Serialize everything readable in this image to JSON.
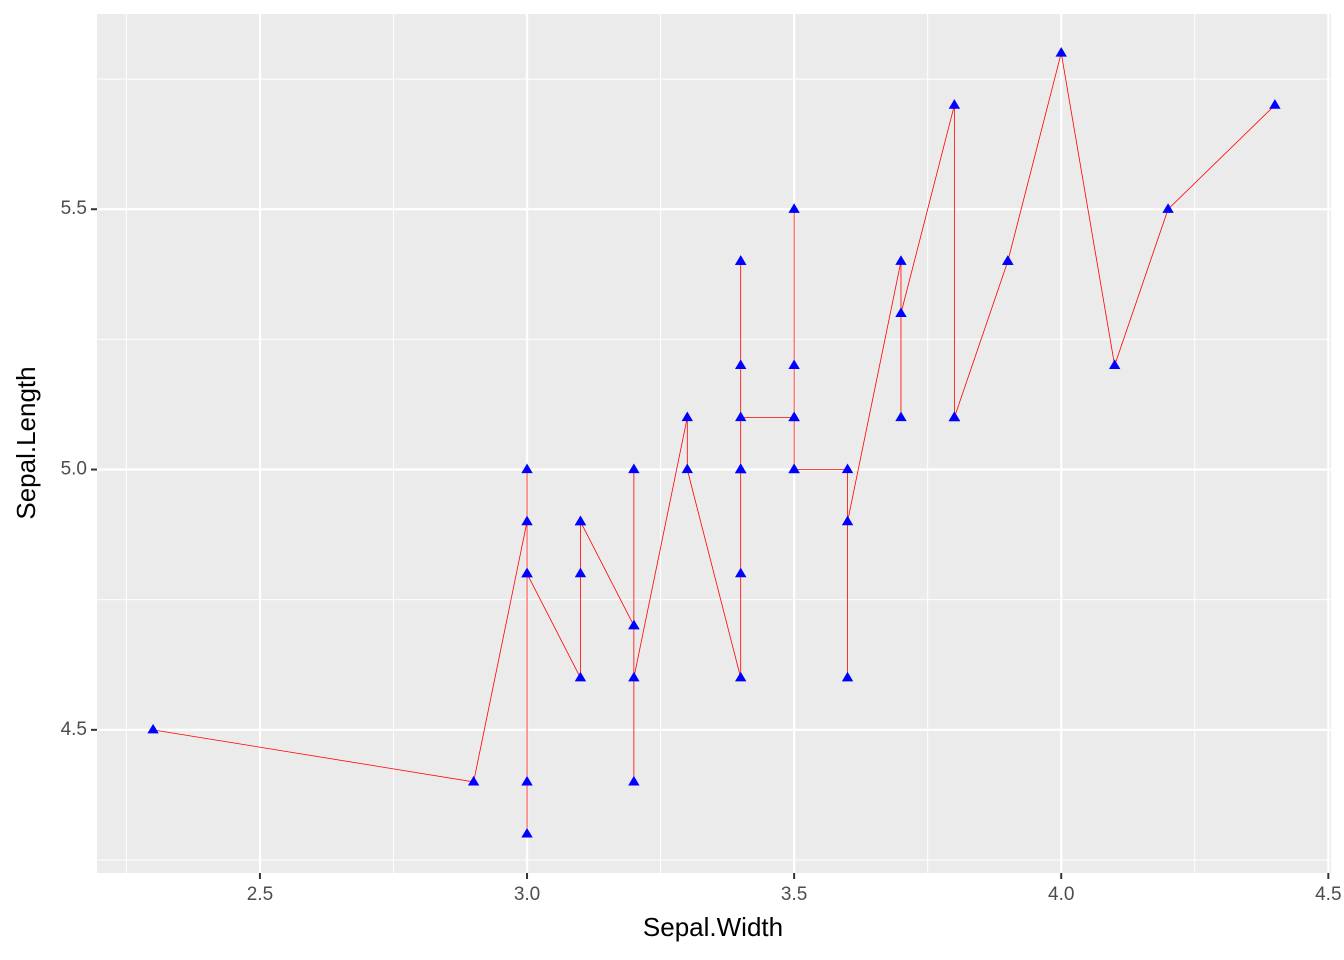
{
  "chart_data": {
    "type": "line",
    "x_label": "Sepal.Width",
    "y_label": "Sepal.Length",
    "x": [
      2.3,
      2.9,
      3.0,
      3.0,
      3.0,
      3.0,
      3.0,
      3.0,
      3.1,
      3.1,
      3.1,
      3.1,
      3.2,
      3.2,
      3.2,
      3.2,
      3.2,
      3.3,
      3.3,
      3.4,
      3.4,
      3.4,
      3.4,
      3.4,
      3.4,
      3.4,
      3.4,
      3.4,
      3.5,
      3.5,
      3.5,
      3.5,
      3.5,
      3.5,
      3.6,
      3.6,
      3.6,
      3.7,
      3.7,
      3.7,
      3.8,
      3.8,
      3.8,
      3.8,
      3.9,
      3.9,
      4.0,
      4.1,
      4.2,
      4.4
    ],
    "series": [
      {
        "color": "#ff0000",
        "point_color": "#0000ff",
        "values": [
          4.5,
          4.4,
          4.9,
          4.8,
          4.3,
          5.0,
          4.4,
          4.8,
          4.6,
          4.9,
          4.8,
          4.9,
          4.7,
          4.7,
          5.0,
          4.4,
          4.6,
          5.1,
          5.0,
          4.6,
          5.0,
          4.8,
          5.4,
          5.0,
          5.0,
          5.2,
          5.4,
          5.1,
          5.1,
          5.1,
          5.2,
          5.5,
          5.0,
          5.0,
          5.0,
          4.6,
          4.9,
          5.4,
          5.1,
          5.3,
          5.7,
          5.1,
          5.1,
          5.1,
          5.4,
          5.4,
          5.8,
          5.2,
          5.5,
          5.7
        ]
      }
    ],
    "xlim": [
      2.195,
      4.505
    ],
    "ylim": [
      4.225,
      5.875
    ],
    "xticks": [
      2.5,
      {
        "value": 3,
        "label": "3.0"
      },
      3.5,
      {
        "value": 4,
        "label": "4.0"
      },
      4.5
    ],
    "yticks": [
      4.5,
      {
        "value": 5,
        "label": "5.0"
      },
      5.5
    ],
    "xminor": [
      2.25,
      2.75,
      3.25,
      3.75,
      4.25
    ],
    "yminor": [
      4.25,
      4.75,
      5.25,
      5.75
    ],
    "grid": true
  }
}
